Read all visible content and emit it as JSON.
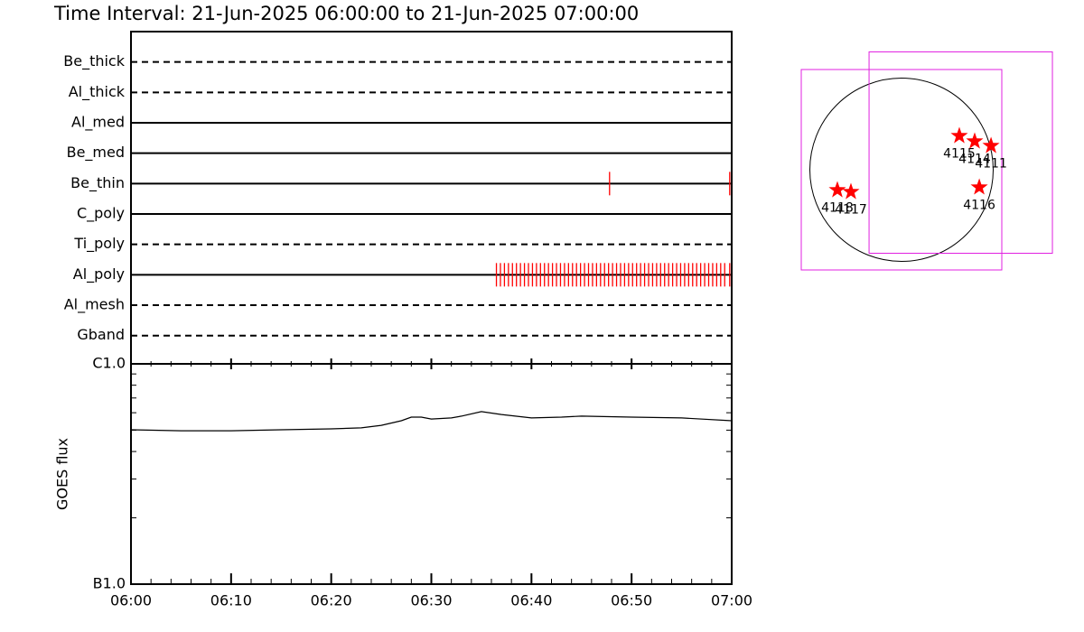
{
  "title": "Time Interval: 21-Jun-2025 06:00:00 to 21-Jun-2025 07:00:00",
  "chart_data": [
    {
      "type": "timeline",
      "xlim": [
        0,
        60
      ],
      "filters": [
        {
          "name": "Be_thick",
          "style": "dashed",
          "obs": []
        },
        {
          "name": "Al_thick",
          "style": "dashed",
          "obs": []
        },
        {
          "name": "Al_med",
          "style": "solid",
          "obs": []
        },
        {
          "name": "Be_med",
          "style": "solid",
          "obs": []
        },
        {
          "name": "Be_thin",
          "style": "solid",
          "obs": [
            47.8,
            59.8
          ]
        },
        {
          "name": "C_poly",
          "style": "solid",
          "obs": []
        },
        {
          "name": "Ti_poly",
          "style": "dashed",
          "obs": []
        },
        {
          "name": "Al_poly",
          "style": "solid",
          "obs": [
            36.5,
            36.9,
            37.3,
            37.7,
            38.1,
            38.5,
            38.9,
            39.3,
            39.7,
            40.1,
            40.5,
            40.9,
            41.3,
            41.7,
            42.1,
            42.5,
            42.9,
            43.3,
            43.7,
            44.1,
            44.5,
            44.9,
            45.3,
            45.7,
            46.1,
            46.5,
            46.9,
            47.3,
            47.7,
            48.1,
            48.5,
            48.9,
            49.3,
            49.7,
            50.1,
            50.5,
            50.9,
            51.3,
            51.7,
            52.1,
            52.5,
            52.9,
            53.3,
            53.7,
            54.1,
            54.5,
            54.9,
            55.3,
            55.7,
            56.1,
            56.5,
            56.9,
            57.3,
            57.7,
            58.1,
            58.5,
            58.9,
            59.3,
            59.8
          ]
        },
        {
          "name": "Al_mesh",
          "style": "dashed",
          "obs": []
        },
        {
          "name": "Gband",
          "style": "dashed",
          "obs": []
        }
      ]
    },
    {
      "type": "line",
      "ylabel": "GOES flux",
      "log": true,
      "xlim": [
        0,
        60
      ],
      "ylim": [
        1e-07,
        1e-06
      ],
      "yticks": [
        {
          "value": 1e-07,
          "label": "B1.0"
        },
        {
          "value": 1e-06,
          "label": "C1.0"
        }
      ],
      "yminor_ticks": [
        2e-07,
        3e-07,
        4e-07,
        5e-07,
        6e-07,
        7e-07,
        8e-07,
        9e-07
      ],
      "xticks": [
        {
          "value": 0,
          "label": "06:00"
        },
        {
          "value": 10,
          "label": "06:10"
        },
        {
          "value": 20,
          "label": "06:20"
        },
        {
          "value": 30,
          "label": "06:30"
        },
        {
          "value": 40,
          "label": "06:40"
        },
        {
          "value": 50,
          "label": "06:50"
        },
        {
          "value": 60,
          "label": "07:00"
        }
      ],
      "xminor_ticks": [
        2,
        4,
        6,
        8,
        12,
        14,
        16,
        18,
        22,
        24,
        26,
        28,
        32,
        34,
        36,
        38,
        42,
        44,
        46,
        48,
        52,
        54,
        56,
        58
      ],
      "color": "#000000",
      "x": [
        0,
        5,
        10,
        15,
        20,
        23,
        25,
        27,
        28,
        29,
        30,
        32,
        33,
        35,
        37,
        40,
        43,
        45,
        50,
        55,
        60
      ],
      "values": [
        5.02e-07,
        4.97e-07,
        4.97e-07,
        5.02e-07,
        5.07e-07,
        5.12e-07,
        5.26e-07,
        5.52e-07,
        5.73e-07,
        5.73e-07,
        5.62e-07,
        5.68e-07,
        5.79e-07,
        6.07e-07,
        5.89e-07,
        5.68e-07,
        5.73e-07,
        5.79e-07,
        5.73e-07,
        5.68e-07,
        5.52e-07
      ]
    }
  ],
  "map": {
    "solar_radius": 960,
    "xlim": [
      -1050,
      1050
    ],
    "ylim": [
      -1050,
      1050
    ],
    "fov_color": "#e020e0",
    "star_color": "#ff0000",
    "fovs": [
      [
        -1050,
        1050,
        -1050,
        1050
      ],
      [
        -340,
        1580,
        -875,
        1235
      ]
    ],
    "stars": [
      {
        "label": "4115",
        "x": 605,
        "y": 355
      },
      {
        "label": "4114",
        "x": 766,
        "y": 298
      },
      {
        "label": "4111",
        "x": 937,
        "y": 251
      },
      {
        "label": "4116",
        "x": 814,
        "y": -184
      },
      {
        "label": "4118",
        "x": -672,
        "y": -213
      },
      {
        "label": "4117",
        "x": -530,
        "y": -232
      }
    ]
  }
}
